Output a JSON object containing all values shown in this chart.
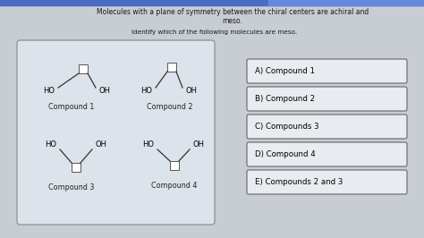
{
  "title_line1": "Molecules with a plane of symmetry between the chiral centers are achiral and",
  "title_line2": "meso.",
  "subtitle": "Identify which of the following molecules are meso.",
  "bg_color": "#c8cdd4",
  "left_panel_bg": "#dde3ea",
  "right_box_bg": "#e8edf2",
  "answer_options": [
    "A) Compound 1",
    "B) Compound 2",
    "C) Compounds 3",
    "D) Compound 4",
    "E) Compounds 2 and 3"
  ],
  "top_bar_color": "#4a6cc4",
  "top_bar_right_color": "#6688dd",
  "title_color": "#1a1a1a",
  "compound_text_color": "#222222",
  "line_color": "#333333",
  "square_edge": "#555555",
  "answer_border": "#666666",
  "answer_bg": "#e8ecf0"
}
